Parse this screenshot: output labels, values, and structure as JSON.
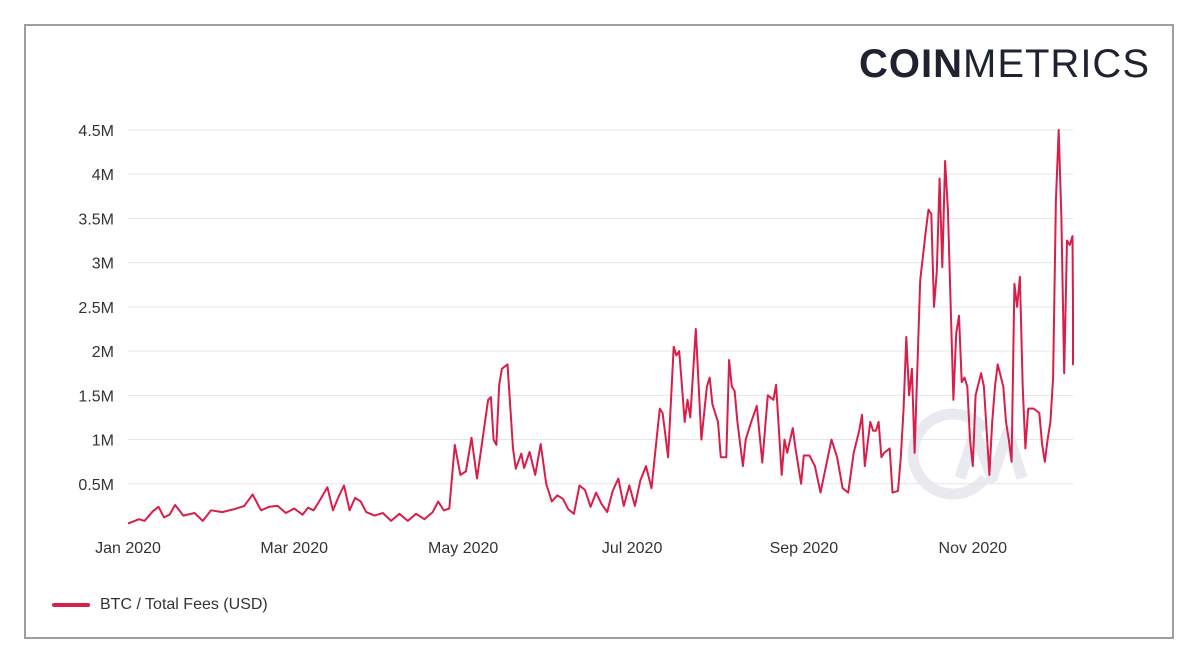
{
  "logo": {
    "bold": "COIN",
    "light": "METRICS",
    "watermark": "CM"
  },
  "legend": {
    "label": "BTC / Total Fees (USD)"
  },
  "colors": {
    "series": "#d81e4a",
    "grid": "#e6e6e6",
    "watermark": "#e8eaf0"
  },
  "chart_data": {
    "type": "line",
    "title": "",
    "xlabel": "",
    "ylabel": "",
    "ylim": [
      0,
      4500000
    ],
    "grid": true,
    "legend_position": "bottom-left",
    "y_ticks": [
      {
        "value": 500000,
        "label": "0.5M"
      },
      {
        "value": 1000000,
        "label": "1M"
      },
      {
        "value": 1500000,
        "label": "1.5M"
      },
      {
        "value": 2000000,
        "label": "2M"
      },
      {
        "value": 2500000,
        "label": "2.5M"
      },
      {
        "value": 3000000,
        "label": "3M"
      },
      {
        "value": 3500000,
        "label": "3.5M"
      },
      {
        "value": 4000000,
        "label": "4M"
      },
      {
        "value": 4500000,
        "label": "4.5M"
      }
    ],
    "x_ticks": [
      {
        "day": 0,
        "label": "Jan 2020"
      },
      {
        "day": 60,
        "label": "Mar 2020"
      },
      {
        "day": 121,
        "label": "May 2020"
      },
      {
        "day": 182,
        "label": "Jul 2020"
      },
      {
        "day": 244,
        "label": "Sep 2020"
      },
      {
        "day": 305,
        "label": "Nov 2020"
      }
    ],
    "x_range_days": [
      0,
      365
    ],
    "series": [
      {
        "name": "BTC / Total Fees (USD)",
        "keypoints_day_value": [
          [
            0,
            50000
          ],
          [
            4,
            100000
          ],
          [
            6,
            80000
          ],
          [
            9,
            190000
          ],
          [
            11,
            240000
          ],
          [
            13,
            120000
          ],
          [
            15,
            150000
          ],
          [
            17,
            260000
          ],
          [
            20,
            140000
          ],
          [
            24,
            170000
          ],
          [
            27,
            80000
          ],
          [
            30,
            200000
          ],
          [
            34,
            180000
          ],
          [
            38,
            210000
          ],
          [
            42,
            250000
          ],
          [
            45,
            380000
          ],
          [
            48,
            200000
          ],
          [
            51,
            240000
          ],
          [
            54,
            250000
          ],
          [
            57,
            170000
          ],
          [
            60,
            220000
          ],
          [
            63,
            150000
          ],
          [
            65,
            230000
          ],
          [
            67,
            200000
          ],
          [
            69,
            300000
          ],
          [
            72,
            460000
          ],
          [
            74,
            200000
          ],
          [
            76,
            350000
          ],
          [
            78,
            480000
          ],
          [
            80,
            200000
          ],
          [
            82,
            340000
          ],
          [
            84,
            300000
          ],
          [
            86,
            180000
          ],
          [
            89,
            140000
          ],
          [
            92,
            170000
          ],
          [
            95,
            80000
          ],
          [
            98,
            160000
          ],
          [
            101,
            80000
          ],
          [
            104,
            160000
          ],
          [
            107,
            100000
          ],
          [
            110,
            180000
          ],
          [
            112,
            300000
          ],
          [
            114,
            200000
          ],
          [
            116,
            220000
          ],
          [
            118,
            940000
          ],
          [
            120,
            600000
          ],
          [
            122,
            640000
          ],
          [
            124,
            1020000
          ],
          [
            126,
            560000
          ],
          [
            128,
            1000000
          ],
          [
            130,
            1450000
          ],
          [
            131,
            1480000
          ],
          [
            132,
            1000000
          ],
          [
            133,
            940000
          ],
          [
            134,
            1620000
          ],
          [
            135,
            1800000
          ],
          [
            137,
            1850000
          ],
          [
            139,
            900000
          ],
          [
            140,
            670000
          ],
          [
            142,
            840000
          ],
          [
            143,
            680000
          ],
          [
            145,
            860000
          ],
          [
            147,
            600000
          ],
          [
            149,
            950000
          ],
          [
            151,
            500000
          ],
          [
            153,
            300000
          ],
          [
            155,
            370000
          ],
          [
            157,
            330000
          ],
          [
            159,
            210000
          ],
          [
            161,
            160000
          ],
          [
            163,
            480000
          ],
          [
            165,
            430000
          ],
          [
            167,
            240000
          ],
          [
            169,
            400000
          ],
          [
            171,
            270000
          ],
          [
            173,
            180000
          ],
          [
            175,
            420000
          ],
          [
            177,
            560000
          ],
          [
            179,
            250000
          ],
          [
            181,
            480000
          ],
          [
            183,
            250000
          ],
          [
            185,
            540000
          ],
          [
            187,
            700000
          ],
          [
            189,
            450000
          ],
          [
            191,
            1050000
          ],
          [
            192,
            1350000
          ],
          [
            193,
            1300000
          ],
          [
            194,
            1050000
          ],
          [
            195,
            800000
          ],
          [
            197,
            2050000
          ],
          [
            198,
            1950000
          ],
          [
            199,
            2000000
          ],
          [
            200,
            1600000
          ],
          [
            201,
            1200000
          ],
          [
            202,
            1450000
          ],
          [
            203,
            1250000
          ],
          [
            205,
            2250000
          ],
          [
            207,
            1000000
          ],
          [
            209,
            1600000
          ],
          [
            210,
            1700000
          ],
          [
            211,
            1400000
          ],
          [
            213,
            1200000
          ],
          [
            214,
            800000
          ],
          [
            216,
            800000
          ],
          [
            217,
            1900000
          ],
          [
            218,
            1600000
          ],
          [
            219,
            1550000
          ],
          [
            220,
            1200000
          ],
          [
            222,
            700000
          ],
          [
            223,
            1000000
          ],
          [
            225,
            1200000
          ],
          [
            227,
            1380000
          ],
          [
            229,
            740000
          ],
          [
            231,
            1500000
          ],
          [
            233,
            1450000
          ],
          [
            234,
            1620000
          ],
          [
            236,
            600000
          ],
          [
            237,
            1000000
          ],
          [
            238,
            850000
          ],
          [
            240,
            1130000
          ],
          [
            241,
            900000
          ],
          [
            243,
            500000
          ],
          [
            244,
            820000
          ],
          [
            246,
            820000
          ],
          [
            248,
            700000
          ],
          [
            250,
            400000
          ],
          [
            252,
            700000
          ],
          [
            254,
            1000000
          ],
          [
            256,
            800000
          ],
          [
            258,
            450000
          ],
          [
            260,
            400000
          ],
          [
            262,
            850000
          ],
          [
            264,
            1100000
          ],
          [
            265,
            1280000
          ],
          [
            266,
            700000
          ],
          [
            268,
            1200000
          ],
          [
            269,
            1100000
          ],
          [
            270,
            1100000
          ],
          [
            271,
            1200000
          ],
          [
            272,
            800000
          ],
          [
            273,
            850000
          ],
          [
            275,
            900000
          ],
          [
            276,
            400000
          ],
          [
            278,
            420000
          ],
          [
            279,
            800000
          ],
          [
            280,
            1350000
          ],
          [
            281,
            2160000
          ],
          [
            282,
            1500000
          ],
          [
            283,
            1800000
          ],
          [
            284,
            850000
          ],
          [
            286,
            2800000
          ],
          [
            288,
            3350000
          ],
          [
            289,
            3600000
          ],
          [
            290,
            3550000
          ],
          [
            291,
            2500000
          ],
          [
            292,
            2900000
          ],
          [
            293,
            3950000
          ],
          [
            294,
            2950000
          ],
          [
            295,
            4150000
          ],
          [
            296,
            3600000
          ],
          [
            298,
            1450000
          ],
          [
            299,
            2200000
          ],
          [
            300,
            2400000
          ],
          [
            301,
            1650000
          ],
          [
            302,
            1700000
          ],
          [
            303,
            1600000
          ],
          [
            304,
            1000000
          ],
          [
            305,
            700000
          ],
          [
            306,
            1500000
          ],
          [
            308,
            1750000
          ],
          [
            309,
            1600000
          ],
          [
            311,
            600000
          ],
          [
            312,
            1200000
          ],
          [
            313,
            1600000
          ],
          [
            314,
            1850000
          ],
          [
            316,
            1600000
          ],
          [
            317,
            1200000
          ],
          [
            318,
            1000000
          ],
          [
            319,
            750000
          ],
          [
            320,
            2760000
          ],
          [
            321,
            2500000
          ],
          [
            322,
            2840000
          ],
          [
            323,
            1600000
          ],
          [
            324,
            900000
          ],
          [
            325,
            1350000
          ],
          [
            327,
            1350000
          ],
          [
            329,
            1300000
          ],
          [
            330,
            950000
          ],
          [
            331,
            750000
          ],
          [
            332,
            1000000
          ],
          [
            333,
            1200000
          ],
          [
            334,
            1700000
          ],
          [
            335,
            3700000
          ],
          [
            336,
            4500000
          ],
          [
            337,
            3500000
          ],
          [
            338,
            1750000
          ],
          [
            339,
            3250000
          ],
          [
            340,
            3200000
          ],
          [
            341,
            3300000
          ],
          [
            342,
            2500000
          ],
          [
            343,
            2100000
          ],
          [
            344,
            1850000
          ],
          [
            345,
            2350000
          ]
        ]
      }
    ]
  }
}
